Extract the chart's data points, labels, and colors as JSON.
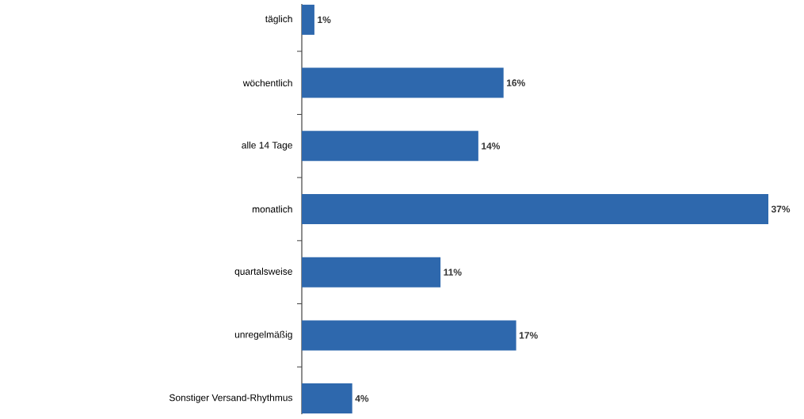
{
  "chart_data": {
    "type": "bar",
    "orientation": "horizontal",
    "categories": [
      "täglich",
      "wöchentlich",
      "alle 14 Tage",
      "monatlich",
      "quartalsweise",
      "unregelmäßig",
      "Sonstiger Versand-Rhythmus"
    ],
    "values": [
      1,
      16,
      14,
      37,
      11,
      17,
      4
    ],
    "value_labels": [
      "1%",
      "16%",
      "14%",
      "37%",
      "11%",
      "17%",
      "4%"
    ],
    "color": "#2e68ad"
  }
}
